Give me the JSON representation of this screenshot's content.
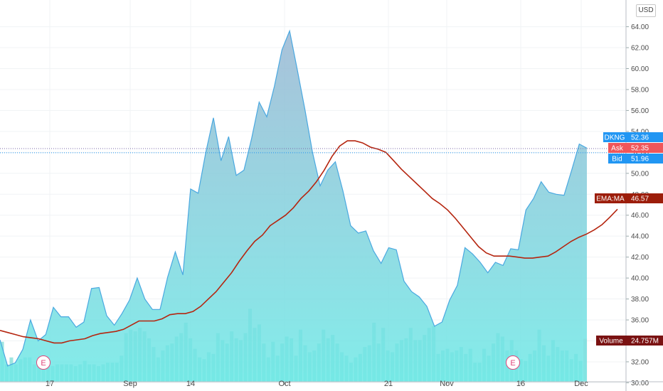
{
  "currency": "USD",
  "colors": {
    "price_line": "#4aa8e0",
    "fill_top": "#9ab7d3",
    "fill_bottom": "#6de9e6",
    "volume": "#7fdcd6",
    "ema": "#b5250f",
    "dkng_tag": "#2196f3",
    "ask_tag": "#f0565a",
    "bid_tag": "#2196f3",
    "ema_tag": "#9c1d0a",
    "volume_tag": "#7a1212",
    "earnings": "#e0457b"
  },
  "chart_data": {
    "type": "area",
    "symbol": "DKNG",
    "ylim": [
      30,
      65
    ],
    "y_ticks": [
      "30.00",
      "32.00",
      "34.00",
      "36.00",
      "38.00",
      "40.00",
      "42.00",
      "44.00",
      "46.00",
      "48.00",
      "50.00",
      "52.00",
      "54.00",
      "56.00",
      "58.00",
      "60.00",
      "62.00",
      "64.00"
    ],
    "x_tick_labels": [
      "17",
      "Sep",
      "14",
      "Oct",
      "21",
      "Nov",
      "16",
      "Dec"
    ],
    "grid": true,
    "price_series": {
      "name": "DKNG",
      "values": [
        34.1,
        31.6,
        31.9,
        33.2,
        36.0,
        34.0,
        34.6,
        37.2,
        36.3,
        36.3,
        35.3,
        35.8,
        39.0,
        39.1,
        36.4,
        35.5,
        36.6,
        37.9,
        40.0,
        38.0,
        37.0,
        37.0,
        40.1,
        42.5,
        40.3,
        48.5,
        48.1,
        52.0,
        55.3,
        51.2,
        53.5,
        49.8,
        50.3,
        53.3,
        56.8,
        55.4,
        58.3,
        61.8,
        63.6,
        59.9,
        56.1,
        52.0,
        48.8,
        50.3,
        51.1,
        48.3,
        45.0,
        44.3,
        44.5,
        42.6,
        41.4,
        42.9,
        42.7,
        39.7,
        38.7,
        38.2,
        37.3,
        35.4,
        35.8,
        37.9,
        39.3,
        42.9,
        42.3,
        41.5,
        40.5,
        41.5,
        41.2,
        42.8,
        42.7,
        46.5,
        47.6,
        49.2,
        48.2,
        48.0,
        47.9,
        50.3,
        52.8,
        52.4
      ]
    },
    "ema_series": {
      "name": "EMA:MA",
      "values": [
        35.0,
        34.8,
        34.6,
        34.4,
        34.3,
        34.2,
        34.0,
        33.8,
        33.8,
        34.0,
        34.1,
        34.2,
        34.5,
        34.7,
        34.8,
        34.9,
        35.1,
        35.5,
        35.9,
        35.9,
        35.9,
        36.1,
        36.5,
        36.6,
        36.6,
        36.8,
        37.3,
        38.0,
        38.7,
        39.6,
        40.5,
        41.6,
        42.6,
        43.5,
        44.1,
        45.0,
        45.5,
        46.0,
        46.7,
        47.6,
        48.3,
        49.2,
        50.3,
        51.6,
        52.6,
        53.1,
        53.1,
        52.9,
        52.5,
        52.3,
        52.0,
        51.2,
        50.4,
        49.7,
        49.0,
        48.3,
        47.6,
        47.1,
        46.5,
        45.7,
        44.8,
        43.9,
        43.0,
        42.4,
        42.1,
        42.1,
        42.1,
        42.0,
        41.9,
        41.9,
        42.0,
        42.1,
        42.5,
        43.0,
        43.5,
        43.9,
        44.2,
        44.6,
        45.1,
        45.8,
        46.57
      ]
    },
    "volume_series": {
      "name": "Volume",
      "values_m": [
        23,
        10,
        14,
        10,
        13,
        14,
        14,
        10,
        10,
        10,
        10,
        9,
        10,
        10,
        10,
        10,
        9,
        10,
        12,
        10,
        10,
        9,
        10,
        11,
        11,
        11,
        15,
        28,
        30,
        29,
        31,
        29,
        25,
        20,
        14,
        18,
        21,
        22,
        26,
        28,
        34,
        25,
        19,
        14,
        13,
        17,
        16,
        28,
        24,
        22,
        29,
        25,
        24,
        28,
        42,
        31,
        33,
        22,
        14,
        23,
        15,
        22,
        26,
        25,
        15,
        30,
        21,
        17,
        18,
        22,
        30,
        25,
        27,
        22,
        17,
        15,
        11,
        14,
        16,
        20,
        21,
        34,
        22,
        31,
        18,
        17,
        22,
        24,
        25,
        31,
        24,
        24,
        27,
        31,
        32,
        16,
        18,
        19,
        17,
        18,
        20,
        16,
        19,
        11,
        11,
        19,
        15,
        22,
        28,
        26,
        18,
        24,
        18,
        13,
        12,
        16,
        18,
        30,
        21,
        15,
        24,
        20,
        18,
        18,
        13,
        16,
        12,
        24.757
      ]
    },
    "last_price": {
      "label": "DKNG",
      "value": "52.36"
    },
    "ask": {
      "label": "Ask",
      "value": "52.35"
    },
    "bid": {
      "label": "Bid",
      "value": "51.96"
    },
    "ema_last": {
      "label": "EMA:MA",
      "value": "46.57"
    },
    "volume_last": {
      "label": "Volume",
      "value": "24.757M"
    },
    "earnings_markers": [
      "E",
      "E"
    ]
  }
}
